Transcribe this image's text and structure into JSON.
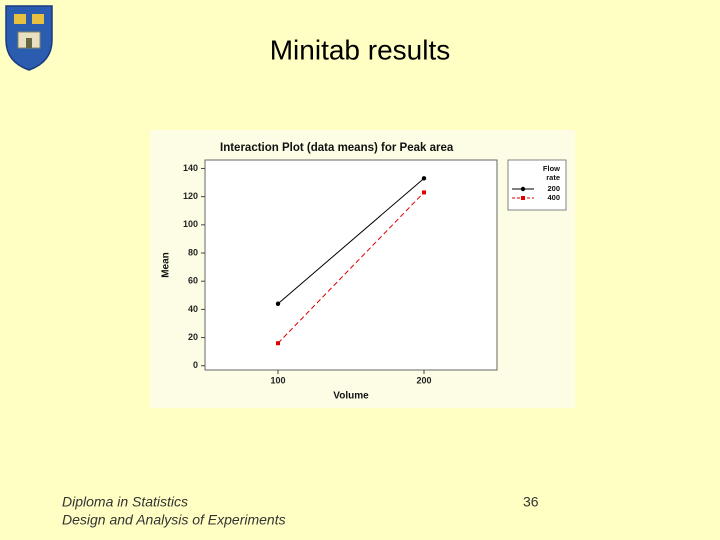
{
  "slide": {
    "title": "Minitab results",
    "footer": [
      "Diploma in Statistics",
      "Design and Analysis of Experiments"
    ],
    "page_number": 36
  },
  "chart_data": {
    "type": "line",
    "title": "Interaction Plot (data means) for Peak area",
    "x_label": "Volume",
    "y_label": "Mean",
    "x": [
      100,
      200
    ],
    "series": [
      {
        "name": "200",
        "color": "#000000",
        "line_style": "solid",
        "marker": "circle",
        "values": [
          44,
          133
        ]
      },
      {
        "name": "400",
        "color": "#e00000",
        "line_style": "dashed",
        "marker": "square",
        "values": [
          16,
          123
        ]
      }
    ],
    "legend_title": [
      "Flow",
      "rate"
    ],
    "legend": "right",
    "xlim": [
      50,
      250
    ],
    "xticks": [
      100,
      200
    ],
    "ylim": [
      -3,
      146
    ],
    "yticks": [
      0,
      20,
      40,
      60,
      80,
      100,
      120,
      140
    ]
  }
}
